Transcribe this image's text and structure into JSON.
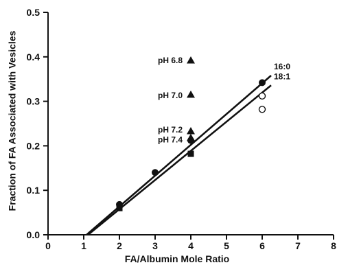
{
  "chart_data": {
    "type": "scatter",
    "xlabel": "FA/Albumin Mole Ratio",
    "ylabel": "Fraction of FA Associated with Vesicles",
    "xlim": [
      0,
      8
    ],
    "ylim": [
      0,
      0.5
    ],
    "x_ticks": [
      "0",
      "1",
      "2",
      "3",
      "4",
      "5",
      "6",
      "7",
      "8"
    ],
    "y_ticks": [
      "0.0",
      "0.1",
      "0.2",
      "0.3",
      "0.4",
      "0.5"
    ],
    "grid": false,
    "series": [
      {
        "name": "16:0",
        "marker": "filled-circle",
        "points": [
          [
            2,
            0.068
          ],
          [
            3,
            0.14
          ],
          [
            4,
            0.212
          ],
          [
            6,
            0.342
          ]
        ],
        "fit_line": [
          [
            1.08,
            0
          ],
          [
            6.25,
            0.358
          ]
        ]
      },
      {
        "name": "18:1",
        "marker": "filled-square",
        "points": [
          [
            2,
            0.06
          ],
          [
            4,
            0.182
          ]
        ],
        "fit_line": [
          [
            1.12,
            0
          ],
          [
            6.25,
            0.336
          ]
        ]
      },
      {
        "marker": "open-circle",
        "points": [
          [
            6,
            0.312
          ],
          [
            6,
            0.282
          ]
        ]
      },
      {
        "marker": "filled-triangle",
        "points": [
          [
            4,
            0.392
          ],
          [
            4,
            0.315
          ],
          [
            4,
            0.233
          ],
          [
            4,
            0.218
          ]
        ]
      }
    ],
    "annotations": [
      {
        "text": "pH 6.8",
        "x": 4,
        "y": 0.392
      },
      {
        "text": "pH 7.0",
        "x": 4,
        "y": 0.313
      },
      {
        "text": "pH 7.2",
        "x": 4,
        "y": 0.236
      },
      {
        "text": "pH 7.4",
        "x": 4,
        "y": 0.214
      }
    ],
    "colors": {
      "ink": "#111111",
      "background": "#ffffff"
    }
  }
}
